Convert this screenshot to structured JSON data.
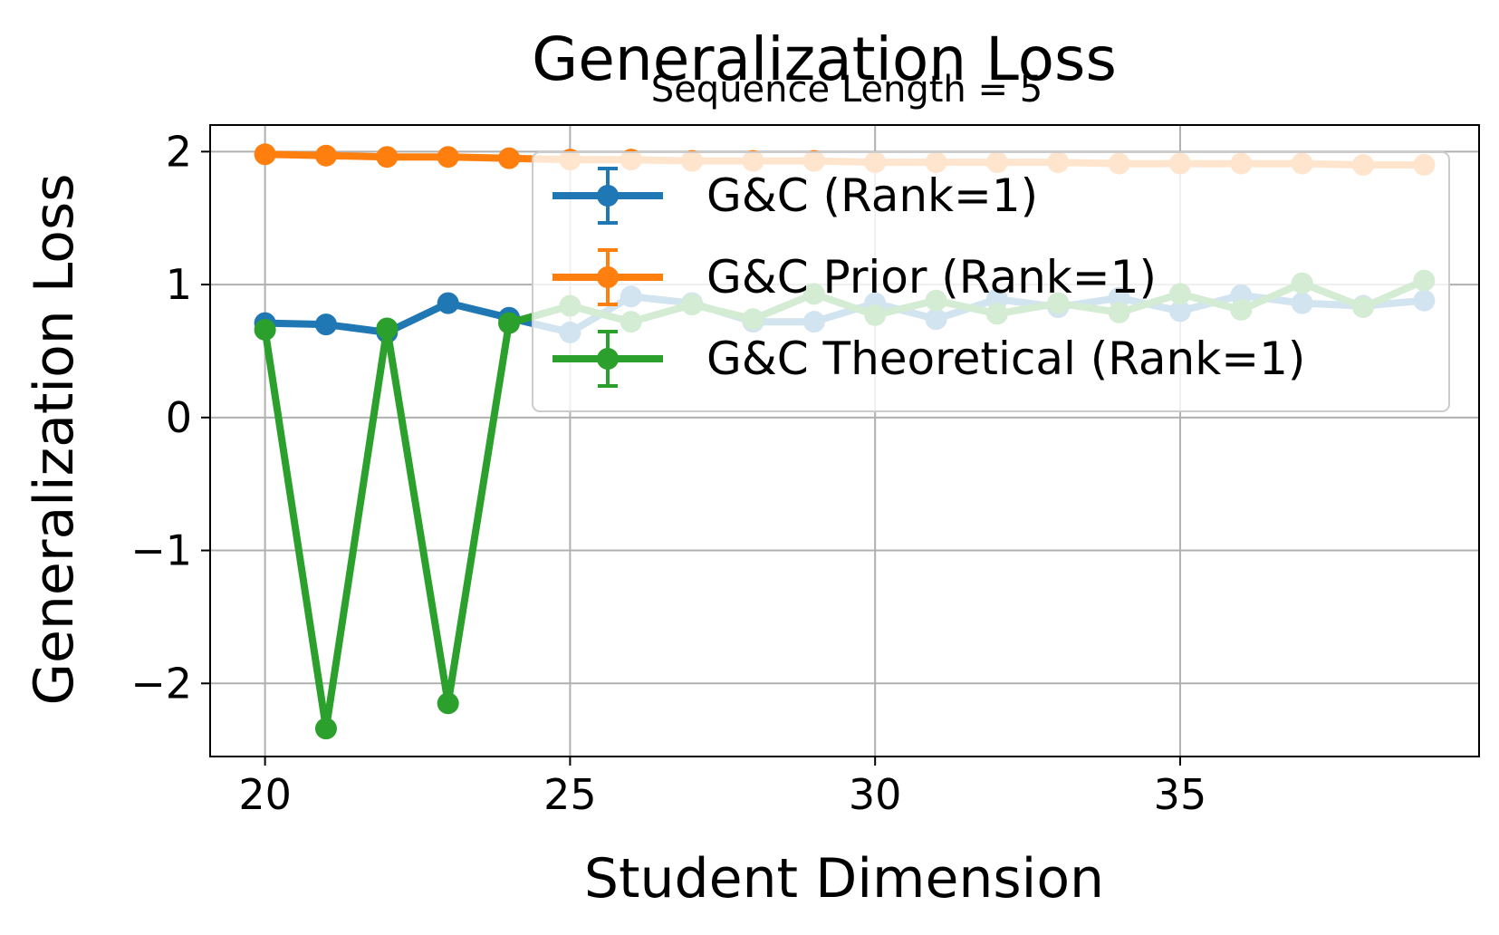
{
  "chart_data": {
    "type": "line",
    "title": "Generalization Loss",
    "subtitle": "Sequence Length = 5",
    "xlabel": "Student Dimension",
    "ylabel": "Generalization Loss",
    "xlim": [
      19.1,
      39.9
    ],
    "ylim": [
      -2.55,
      2.2
    ],
    "xticks": [
      20,
      25,
      30,
      35
    ],
    "xtick_labels": [
      "20",
      "25",
      "30",
      "35"
    ],
    "yticks": [
      -2,
      -1,
      0,
      1,
      2
    ],
    "ytick_labels": [
      "−2",
      "−1",
      "0",
      "1",
      "2"
    ],
    "grid": true,
    "legend_position": "upper-right",
    "x": [
      20,
      21,
      22,
      23,
      24,
      25,
      26,
      27,
      28,
      29,
      30,
      31,
      32,
      33,
      34,
      35,
      36,
      37,
      38,
      39
    ],
    "series": [
      {
        "name": "G&C (Rank=1)",
        "color": "#1f77b4",
        "values": [
          0.71,
          0.7,
          0.64,
          0.86,
          0.75,
          0.64,
          0.91,
          0.86,
          0.72,
          0.72,
          0.86,
          0.74,
          0.89,
          0.83,
          0.9,
          0.8,
          0.92,
          0.86,
          0.84,
          0.88
        ]
      },
      {
        "name": "G&C Prior (Rank=1)",
        "color": "#ff7f0e",
        "values": [
          1.98,
          1.97,
          1.96,
          1.96,
          1.95,
          1.94,
          1.94,
          1.93,
          1.93,
          1.93,
          1.92,
          1.92,
          1.92,
          1.92,
          1.91,
          1.91,
          1.91,
          1.91,
          1.9,
          1.9
        ]
      },
      {
        "name": "G&C Theoretical (Rank=1)",
        "color": "#2ca02c",
        "values": [
          0.66,
          -2.34,
          0.67,
          -2.15,
          0.71,
          0.84,
          0.72,
          0.85,
          0.74,
          0.93,
          0.77,
          0.88,
          0.78,
          0.86,
          0.79,
          0.93,
          0.81,
          1.01,
          0.83,
          1.03
        ]
      }
    ]
  }
}
